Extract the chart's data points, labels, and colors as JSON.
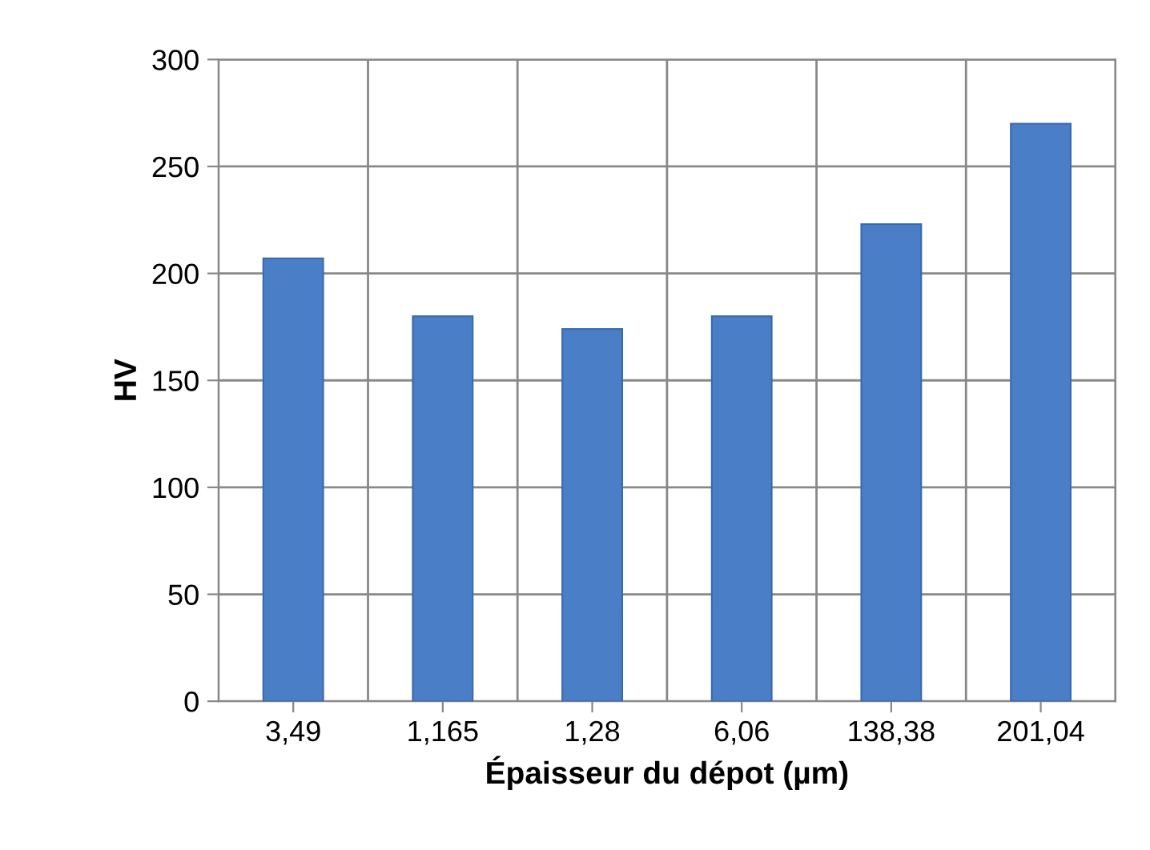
{
  "chart_data": {
    "type": "bar",
    "xlabel": "Épaisseur du dépot (µm)",
    "ylabel": "HV",
    "categories": [
      "3,49",
      "1,165",
      "1,28",
      "6,06",
      "138,38",
      "201,04"
    ],
    "values": [
      207,
      180,
      174,
      180,
      223,
      270
    ],
    "color": "#4a7fc8",
    "ylim": [
      0,
      300
    ],
    "yticks": [
      0,
      50,
      100,
      150,
      200,
      250,
      300
    ],
    "grid": true
  }
}
